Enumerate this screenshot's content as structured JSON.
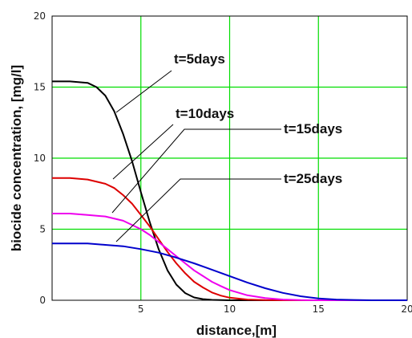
{
  "chart_data": {
    "type": "line",
    "xlabel": "distance,[m]",
    "ylabel": "biocide concentration, [mg/l]",
    "xlim": [
      0,
      20
    ],
    "ylim": [
      0,
      20
    ],
    "xticks": [
      "5",
      "10",
      "15",
      "20"
    ],
    "yticks": [
      "0",
      "5",
      "10",
      "15",
      "20"
    ],
    "grid": true,
    "grid_color": "#00dd00",
    "series": [
      {
        "name": "t=5days",
        "color": "#000000",
        "x": [
          0,
          1,
          2,
          2.5,
          3,
          3.5,
          4,
          4.5,
          5,
          5.5,
          6,
          6.5,
          7,
          7.5,
          8,
          8.5,
          9,
          9.5,
          10,
          12,
          15,
          20
        ],
        "y": [
          15.4,
          15.4,
          15.3,
          15.0,
          14.4,
          13.3,
          11.7,
          9.8,
          7.6,
          5.5,
          3.6,
          2.1,
          1.1,
          0.5,
          0.2,
          0.08,
          0.03,
          0.01,
          0,
          0,
          0,
          0
        ]
      },
      {
        "name": "t=10days",
        "color": "#dd0000",
        "x": [
          0,
          1,
          2,
          3,
          3.5,
          4,
          4.5,
          5,
          5.5,
          6,
          6.5,
          7,
          7.5,
          8,
          8.5,
          9,
          9.5,
          10,
          11,
          12,
          13,
          15,
          20
        ],
        "y": [
          8.6,
          8.6,
          8.5,
          8.2,
          7.9,
          7.4,
          6.8,
          6.0,
          5.2,
          4.3,
          3.4,
          2.6,
          1.9,
          1.3,
          0.9,
          0.55,
          0.33,
          0.18,
          0.05,
          0.01,
          0,
          0,
          0
        ]
      },
      {
        "name": "t=15days",
        "color": "#ee00ee",
        "x": [
          0,
          1,
          2,
          3,
          4,
          5,
          5.5,
          6,
          6.5,
          7,
          7.5,
          8,
          8.5,
          9,
          9.5,
          10,
          11,
          12,
          13,
          14,
          15,
          20
        ],
        "y": [
          6.1,
          6.1,
          6.0,
          5.9,
          5.6,
          5.0,
          4.6,
          4.1,
          3.6,
          3.1,
          2.6,
          2.1,
          1.7,
          1.3,
          1.0,
          0.72,
          0.35,
          0.15,
          0.05,
          0.01,
          0,
          0
        ]
      },
      {
        "name": "t=25days",
        "color": "#0000cc",
        "x": [
          0,
          1,
          2,
          3,
          4,
          5,
          6,
          7,
          8,
          9,
          10,
          11,
          12,
          13,
          14,
          15,
          16,
          17,
          18,
          20
        ],
        "y": [
          4.0,
          4.0,
          4.0,
          3.9,
          3.8,
          3.6,
          3.35,
          3.0,
          2.6,
          2.15,
          1.7,
          1.25,
          0.85,
          0.52,
          0.28,
          0.13,
          0.05,
          0.02,
          0,
          0
        ]
      }
    ]
  }
}
